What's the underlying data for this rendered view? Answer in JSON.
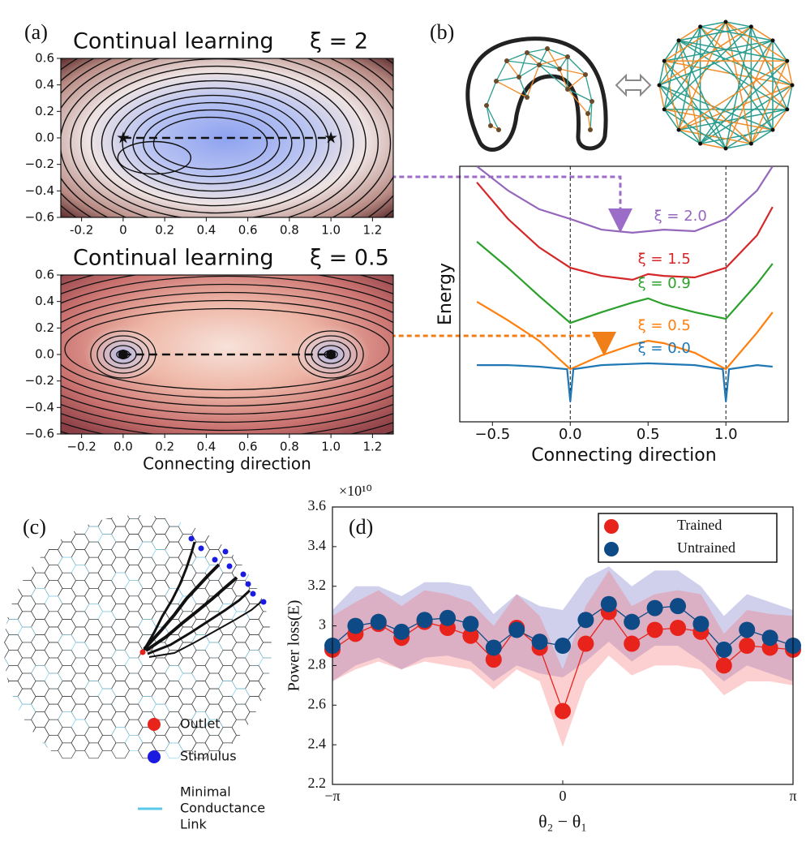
{
  "panel_labels": [
    "(a)",
    "(b)",
    "(c)",
    "(d)"
  ],
  "chart_data": [
    {
      "type": "contour",
      "title": "Continual learning",
      "annotation": "ξ = 2",
      "xlim": [
        -0.3,
        1.3
      ],
      "ylim": [
        -0.6,
        0.6
      ],
      "xticks": [
        -0.2,
        0,
        0.2,
        0.4,
        0.6,
        0.8,
        {
          "value": 1.0,
          "label": "1.0"
        },
        1.2
      ],
      "yticks": [
        {
          "value": -0.6,
          "label": "−0.6"
        },
        {
          "value": -0.4,
          "label": "−0.4"
        },
        {
          "value": -0.2,
          "label": "−0.2"
        },
        {
          "value": 0,
          "label": "0.0"
        },
        0.2,
        0.4,
        0.6
      ],
      "points": {
        "x": [
          0,
          1
        ],
        "y": [
          0,
          0
        ]
      },
      "theme": "blue"
    },
    {
      "type": "contour",
      "title": "Continual learning",
      "annotation": "ξ = 0.5",
      "xlabel": "Connecting direction",
      "xlim": [
        -0.3,
        1.3
      ],
      "ylim": [
        -0.6,
        0.6
      ],
      "xticks": [
        {
          "value": -0.2,
          "label": "−0.2"
        },
        {
          "value": 0,
          "label": "0.0"
        },
        0.2,
        0.4,
        0.6,
        0.8,
        {
          "value": 1.0,
          "label": "1.0"
        },
        1.2
      ],
      "yticks": [
        {
          "value": -0.6,
          "label": "−0.6"
        },
        {
          "value": -0.4,
          "label": "−0.4"
        },
        {
          "value": -0.2,
          "label": "−0.2"
        },
        {
          "value": 0,
          "label": "0.0"
        },
        0.2,
        0.4,
        0.6
      ],
      "points": {
        "x": [
          0,
          1
        ],
        "y": [
          0,
          0
        ]
      },
      "theme": "red"
    },
    {
      "type": "line",
      "xlabel": "Connecting direction",
      "ylabel": "Energy",
      "xlim": [
        -0.71,
        1.4
      ],
      "ylim": [
        0,
        10
      ],
      "xticks": [
        {
          "value": -0.5,
          "label": "−0.5"
        },
        {
          "value": 0,
          "label": "0.0"
        },
        0.5,
        {
          "value": 1.0,
          "label": "1.0"
        }
      ],
      "vlines": [
        0,
        1
      ],
      "series": [
        {
          "name": "ξ = 2.0",
          "color": "#9467bd",
          "x": [
            -0.6,
            -0.4,
            -0.2,
            0,
            0.2,
            0.4,
            0.5,
            0.6,
            0.8,
            1.0,
            1.2,
            1.3
          ],
          "values": [
            10,
            9.05,
            8.32,
            7.94,
            7.52,
            7.4,
            7.46,
            7.52,
            7.46,
            7.94,
            9.05,
            10
          ]
        },
        {
          "name": "ξ = 1.5",
          "color": "#d62728",
          "x": [
            -0.6,
            -0.4,
            -0.2,
            0,
            0.2,
            0.4,
            0.5,
            0.6,
            0.8,
            1.0,
            1.2,
            1.3
          ],
          "values": [
            9.37,
            7.94,
            6.83,
            6.03,
            5.71,
            5.56,
            5.78,
            5.71,
            5.65,
            6.03,
            7.3,
            8.41
          ]
        },
        {
          "name": "ξ = 0.9",
          "color": "#2ca02c",
          "x": [
            -0.6,
            -0.4,
            -0.2,
            0,
            0.2,
            0.4,
            0.5,
            0.6,
            0.8,
            1.0,
            1.2,
            1.3
          ],
          "values": [
            7.05,
            6.03,
            4.92,
            3.87,
            4.29,
            4.67,
            4.83,
            4.6,
            4.29,
            4.03,
            5.4,
            6.19
          ]
        },
        {
          "name": "ξ = 0.5",
          "color": "#ff7f0e",
          "x": [
            -0.6,
            -0.4,
            -0.2,
            0,
            0.2,
            0.4,
            0.5,
            0.6,
            0.8,
            1.0,
            1.2,
            1.3
          ],
          "values": [
            4.7,
            3.97,
            3.17,
            2.06,
            2.6,
            3.02,
            3.17,
            3.08,
            2.7,
            2.06,
            3.49,
            4.29
          ]
        },
        {
          "name": "ξ = 0.0",
          "color": "#1f77b4",
          "x": [
            -0.6,
            -0.4,
            -0.2,
            -0.02,
            0,
            0.02,
            0.2,
            0.5,
            0.8,
            0.98,
            1.0,
            1.02,
            1.2,
            1.3
          ],
          "values": [
            2.22,
            2.22,
            2.16,
            2.06,
            0.79,
            2.06,
            2.22,
            2.29,
            2.22,
            2.06,
            0.79,
            2.06,
            2.22,
            2.16
          ]
        }
      ]
    },
    {
      "type": "band",
      "xlabel": "θ₂ − θ₁",
      "ylabel": "Power loss(E)",
      "multiplier": "×10¹⁰",
      "xlim": [
        -3.1416,
        3.1416
      ],
      "ylim": [
        2.2,
        3.6
      ],
      "xticks": [
        {
          "value": -3.1416,
          "label": "−π"
        },
        0,
        {
          "value": 3.1416,
          "label": "π"
        }
      ],
      "yticks": [
        2.2,
        2.4,
        2.6,
        2.8,
        3,
        3.2,
        3.4,
        3.6
      ],
      "x": [
        -3.1416,
        -2.8274,
        -2.5133,
        -2.1991,
        -1.885,
        -1.5708,
        -1.2566,
        -0.9425,
        -0.6283,
        -0.3142,
        0,
        0.3142,
        0.6283,
        0.9425,
        1.2566,
        1.5708,
        1.885,
        2.1991,
        2.5133,
        2.8274,
        3.1416
      ],
      "series": [
        {
          "name": "Untrained",
          "color": "#0d4a86",
          "band_color": "rgba(110,110,200,0.32)",
          "values": [
            2.9,
            3.0,
            3.02,
            2.97,
            3.03,
            3.04,
            3.01,
            2.89,
            2.98,
            2.92,
            2.9,
            3.03,
            3.11,
            3.02,
            3.09,
            3.1,
            3.01,
            2.88,
            2.98,
            2.94,
            2.9
          ],
          "lower": [
            2.72,
            2.8,
            2.84,
            2.78,
            2.84,
            2.85,
            2.82,
            2.72,
            2.8,
            2.76,
            2.74,
            2.82,
            2.92,
            2.82,
            2.9,
            2.9,
            2.82,
            2.72,
            2.8,
            2.76,
            2.72
          ],
          "upper": [
            3.08,
            3.2,
            3.2,
            3.15,
            3.22,
            3.22,
            3.2,
            3.06,
            3.16,
            3.1,
            3.08,
            3.24,
            3.3,
            3.2,
            3.28,
            3.28,
            3.2,
            3.05,
            3.16,
            3.12,
            3.08
          ]
        },
        {
          "name": "Trained",
          "color": "#e8231c",
          "band_color": "rgba(245,110,110,0.32)",
          "values": [
            2.88,
            2.96,
            3.01,
            2.94,
            3.02,
            2.99,
            2.95,
            2.83,
            2.99,
            2.89,
            2.57,
            2.91,
            3.07,
            2.91,
            2.98,
            2.99,
            2.97,
            2.8,
            2.9,
            2.89,
            2.88
          ],
          "lower": [
            2.72,
            2.78,
            2.82,
            2.78,
            2.82,
            2.8,
            2.78,
            2.68,
            2.78,
            2.72,
            2.39,
            2.72,
            2.85,
            2.75,
            2.8,
            2.8,
            2.78,
            2.65,
            2.72,
            2.72,
            2.7
          ],
          "upper": [
            3.05,
            3.12,
            3.18,
            3.1,
            3.18,
            3.16,
            3.12,
            3.0,
            3.16,
            3.05,
            2.78,
            3.1,
            3.28,
            3.1,
            3.16,
            3.18,
            3.16,
            2.96,
            3.08,
            3.06,
            3.05
          ]
        }
      ],
      "legend_order": [
        1,
        0
      ],
      "legend": "upper right"
    }
  ],
  "network_c": {
    "legend": [
      {
        "label": "Outlet",
        "color": "#e8231c"
      },
      {
        "label": "Stimulus",
        "color": "#1a1ae0"
      },
      {
        "lines": [
          "Minimal",
          "Conductance",
          "Link"
        ],
        "color": "#5bc8ea"
      }
    ]
  }
}
